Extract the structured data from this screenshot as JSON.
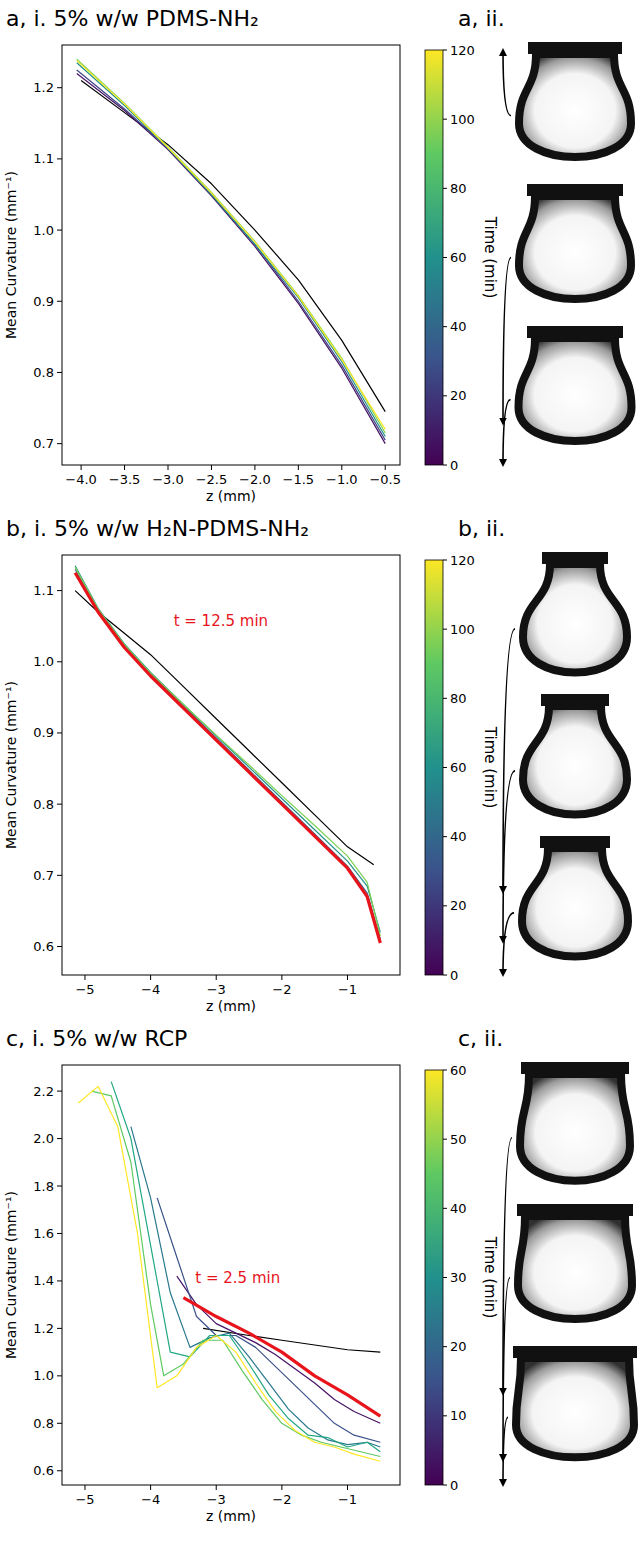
{
  "chart_data": [
    {
      "type": "line",
      "title": "a, i. 5% w/w PDMS-NH₂",
      "side_title": "a, ii.",
      "x_label": "z (mm)",
      "y_label": "Mean Curvature (mm⁻¹)",
      "xlim": [
        -4.22,
        -0.33
      ],
      "ylim": [
        0.67,
        1.26
      ],
      "xticks": [
        {
          "value": -4,
          "label": "−4.0"
        },
        {
          "value": -3.5,
          "label": "−3.5"
        },
        {
          "value": -3,
          "label": "−3.0"
        },
        {
          "value": -2.5,
          "label": "−2.5"
        },
        {
          "value": -2,
          "label": "−2.0"
        },
        {
          "value": -1.5,
          "label": "−1.5"
        },
        {
          "value": -1,
          "label": "−1.0"
        },
        {
          "value": -0.5,
          "label": "−0.5"
        }
      ],
      "yticks": [
        0.7,
        0.8,
        0.9,
        {
          "value": 1,
          "label": "1.0"
        },
        1.1,
        1.2
      ],
      "series": [
        {
          "color": "#000000",
          "line_style": "solid",
          "x": [
            -4.0,
            -3.5,
            -3.0,
            -2.5,
            -2.0,
            -1.5,
            -1.0,
            -0.5
          ],
          "values": [
            1.21,
            1.165,
            1.12,
            1.065,
            1.0,
            0.93,
            0.845,
            0.745
          ]
        },
        {
          "color": "#471365",
          "line_style": "solid",
          "x": [
            -4.05,
            -3.5,
            -3.0,
            -2.5,
            -2.0,
            -1.5,
            -1.0,
            -0.5
          ],
          "values": [
            1.22,
            1.168,
            1.113,
            1.048,
            0.977,
            0.897,
            0.806,
            0.7
          ]
        },
        {
          "color": "#414487",
          "line_style": "solid",
          "x": [
            -4.05,
            -3.5,
            -3.0,
            -2.5,
            -2.0,
            -1.5,
            -1.0,
            -0.5
          ],
          "values": [
            1.225,
            1.17,
            1.115,
            1.05,
            0.98,
            0.9,
            0.81,
            0.705
          ]
        },
        {
          "color": "#21918c",
          "line_style": "solid",
          "x": [
            -4.05,
            -3.5,
            -3.0,
            -2.5,
            -2.0,
            -1.5,
            -1.0,
            -0.5
          ],
          "values": [
            1.235,
            1.175,
            1.115,
            1.05,
            0.98,
            0.905,
            0.815,
            0.71
          ]
        },
        {
          "color": "#7ad151",
          "line_style": "solid",
          "x": [
            -4.05,
            -3.5,
            -3.0,
            -2.5,
            -2.0,
            -1.5,
            -1.0,
            -0.5
          ],
          "values": [
            1.24,
            1.178,
            1.117,
            1.053,
            0.984,
            0.908,
            0.82,
            0.715
          ]
        },
        {
          "color": "#fde725",
          "line_style": "solid",
          "x": [
            -4.05,
            -3.5,
            -3.0,
            -2.5,
            -2.0,
            -1.5,
            -1.0,
            -0.5
          ],
          "values": [
            1.238,
            1.177,
            1.116,
            1.052,
            0.983,
            0.907,
            0.818,
            0.72
          ]
        }
      ],
      "colorbar_range": [
        0,
        120
      ],
      "colorbar_ticks": [
        0,
        20,
        40,
        60,
        80,
        100,
        120
      ],
      "colorbar_label": "Time (min)",
      "annotations": []
    },
    {
      "type": "line",
      "title": "b, i. 5% w/w H₂N-PDMS-NH₂",
      "side_title": "b, ii.",
      "x_label": "z (mm)",
      "y_label": "Mean Curvature (mm⁻¹)",
      "xlim": [
        -5.35,
        -0.2
      ],
      "ylim": [
        0.56,
        1.15
      ],
      "xticks": [
        {
          "value": -5,
          "label": "−5"
        },
        {
          "value": -4,
          "label": "−4"
        },
        {
          "value": -3,
          "label": "−3"
        },
        {
          "value": -2,
          "label": "−2"
        },
        {
          "value": -1,
          "label": "−1"
        }
      ],
      "yticks": [
        0.6,
        0.7,
        0.8,
        0.9,
        {
          "value": 1,
          "label": "1.0"
        },
        1.1
      ],
      "series": [
        {
          "color": "#000000",
          "line_style": "solid",
          "x": [
            -5.15,
            -4.8,
            -4.4,
            -4.0,
            -3.5,
            -3.0,
            -2.5,
            -2.0,
            -1.5,
            -1.0,
            -0.6
          ],
          "values": [
            1.1,
            1.07,
            1.04,
            1.01,
            0.965,
            0.92,
            0.875,
            0.83,
            0.785,
            0.74,
            0.715
          ]
        },
        {
          "color": "#31688e",
          "line_style": "solid",
          "x": [
            -5.15,
            -4.8,
            -4.4,
            -4.0,
            -3.5,
            -3.0,
            -2.5,
            -2.0,
            -1.5,
            -1.0,
            -0.7,
            -0.5
          ],
          "values": [
            1.13,
            1.073,
            1.023,
            0.983,
            0.938,
            0.893,
            0.848,
            0.803,
            0.758,
            0.713,
            0.675,
            0.61
          ]
        },
        {
          "color": "#21918c",
          "line_style": "solid",
          "x": [
            -5.15,
            -4.8,
            -4.4,
            -4.0,
            -3.5,
            -3.0,
            -2.5,
            -2.0,
            -1.5,
            -1.0,
            -0.7,
            -0.5
          ],
          "values": [
            1.135,
            1.075,
            1.025,
            0.985,
            0.94,
            0.896,
            0.852,
            0.808,
            0.764,
            0.72,
            0.685,
            0.62
          ]
        },
        {
          "color": "#7ad151",
          "line_style": "solid",
          "x": [
            -5.15,
            -4.8,
            -4.4,
            -4.0,
            -3.5,
            -3.0,
            -2.5,
            -2.0,
            -1.5,
            -1.0,
            -0.7,
            -0.5
          ],
          "values": [
            1.133,
            1.074,
            1.024,
            0.984,
            0.94,
            0.897,
            0.855,
            0.812,
            0.77,
            0.727,
            0.69,
            0.615
          ]
        },
        {
          "color": "#e8141c",
          "line_style": "thick",
          "x": [
            -5.15,
            -4.8,
            -4.4,
            -4.0,
            -3.5,
            -3.0,
            -2.5,
            -2.0,
            -1.5,
            -1.0,
            -0.7,
            -0.5
          ],
          "values": [
            1.125,
            1.07,
            1.02,
            0.98,
            0.935,
            0.89,
            0.845,
            0.8,
            0.755,
            0.71,
            0.67,
            0.605
          ]
        }
      ],
      "colorbar_range": [
        0,
        120
      ],
      "colorbar_ticks": [
        0,
        20,
        40,
        60,
        80,
        100,
        120
      ],
      "colorbar_label": "Time (min)",
      "annotations": [
        {
          "text": "t = 12.5 min",
          "color": "#e8141c"
        }
      ]
    },
    {
      "type": "line",
      "title": "c, i. 5% w/w RCP",
      "side_title": "c, ii.",
      "x_label": "z (mm)",
      "y_label": "Mean Curvature (mm⁻¹)",
      "xlim": [
        -5.35,
        -0.2
      ],
      "ylim": [
        0.54,
        2.31
      ],
      "xticks": [
        {
          "value": -5,
          "label": "−5"
        },
        {
          "value": -4,
          "label": "−4"
        },
        {
          "value": -3,
          "label": "−3"
        },
        {
          "value": -2,
          "label": "−2"
        },
        {
          "value": -1,
          "label": "−1"
        }
      ],
      "yticks": [
        0.6,
        0.8,
        {
          "value": 1,
          "label": "1.0"
        },
        1.2,
        1.4,
        1.6,
        1.8,
        {
          "value": 2,
          "label": "2.0"
        },
        2.2
      ],
      "series": [
        {
          "color": "#000000",
          "line_style": "solid",
          "x": [
            -3.2,
            -2.5,
            -2.0,
            -1.5,
            -1.0,
            -0.5
          ],
          "values": [
            1.2,
            1.17,
            1.15,
            1.13,
            1.11,
            1.1
          ]
        },
        {
          "color": "#471365",
          "line_style": "solid",
          "x": [
            -3.6,
            -3.3,
            -3.0,
            -2.7,
            -2.4,
            -2.1,
            -1.8,
            -1.5,
            -1.2,
            -0.9,
            -0.5
          ],
          "values": [
            1.42,
            1.3,
            1.22,
            1.18,
            1.14,
            1.09,
            1.03,
            0.97,
            0.9,
            0.85,
            0.8
          ]
        },
        {
          "color": "#3b528b",
          "line_style": "solid",
          "x": [
            -3.9,
            -3.6,
            -3.3,
            -3.0,
            -2.7,
            -2.4,
            -2.1,
            -1.8,
            -1.5,
            -1.2,
            -0.9,
            -0.5
          ],
          "values": [
            1.75,
            1.5,
            1.25,
            1.17,
            1.17,
            1.12,
            1.04,
            0.96,
            0.88,
            0.8,
            0.75,
            0.72
          ]
        },
        {
          "color": "#2a788e",
          "line_style": "solid",
          "x": [
            -4.3,
            -4.0,
            -3.7,
            -3.4,
            -3.1,
            -2.8,
            -2.5,
            -2.2,
            -1.9,
            -1.6,
            -1.3,
            -1.0,
            -0.7,
            -0.5
          ],
          "values": [
            2.05,
            1.75,
            1.35,
            1.12,
            1.16,
            1.18,
            1.08,
            0.97,
            0.86,
            0.78,
            0.73,
            0.71,
            0.72,
            0.7
          ]
        },
        {
          "color": "#22a884",
          "line_style": "solid",
          "x": [
            -4.6,
            -4.3,
            -4.0,
            -3.7,
            -3.4,
            -3.1,
            -2.8,
            -2.5,
            -2.2,
            -1.9,
            -1.6,
            -1.3,
            -1.0,
            -0.7,
            -0.5
          ],
          "values": [
            2.24,
            2.0,
            1.55,
            1.1,
            1.08,
            1.17,
            1.17,
            1.05,
            0.92,
            0.82,
            0.75,
            0.74,
            0.7,
            0.72,
            0.68
          ]
        },
        {
          "color": "#5ec962",
          "line_style": "solid",
          "x": [
            -4.9,
            -4.6,
            -4.3,
            -4.0,
            -3.8,
            -3.5,
            -3.2,
            -2.9,
            -2.6,
            -2.3,
            -2.0,
            -1.7,
            -1.4,
            -1.1,
            -0.8,
            -0.5
          ],
          "values": [
            2.2,
            2.18,
            1.9,
            1.3,
            1.0,
            1.05,
            1.15,
            1.15,
            1.02,
            0.9,
            0.8,
            0.75,
            0.72,
            0.7,
            0.68,
            0.66
          ]
        },
        {
          "color": "#fde725",
          "line_style": "solid",
          "x": [
            -5.1,
            -4.8,
            -4.5,
            -4.2,
            -3.9,
            -3.6,
            -3.3,
            -3.0,
            -2.7,
            -2.4,
            -2.1,
            -1.8,
            -1.5,
            -1.2,
            -0.9,
            -0.5
          ],
          "values": [
            2.15,
            2.22,
            2.05,
            1.6,
            0.95,
            1.0,
            1.12,
            1.17,
            1.1,
            0.97,
            0.85,
            0.77,
            0.72,
            0.7,
            0.67,
            0.64
          ]
        },
        {
          "color": "#e8141c",
          "line_style": "thick",
          "x": [
            -3.5,
            -3.0,
            -2.5,
            -2.0,
            -1.5,
            -1.0,
            -0.5
          ],
          "values": [
            1.33,
            1.25,
            1.18,
            1.1,
            1.0,
            0.92,
            0.83
          ]
        }
      ],
      "colorbar_range": [
        0,
        60
      ],
      "colorbar_ticks": [
        0,
        10,
        20,
        30,
        40,
        50,
        60
      ],
      "colorbar_label": "Time (min)",
      "annotations": [
        {
          "text": "t = 2.5 min",
          "color": "#e8141c"
        }
      ]
    }
  ]
}
